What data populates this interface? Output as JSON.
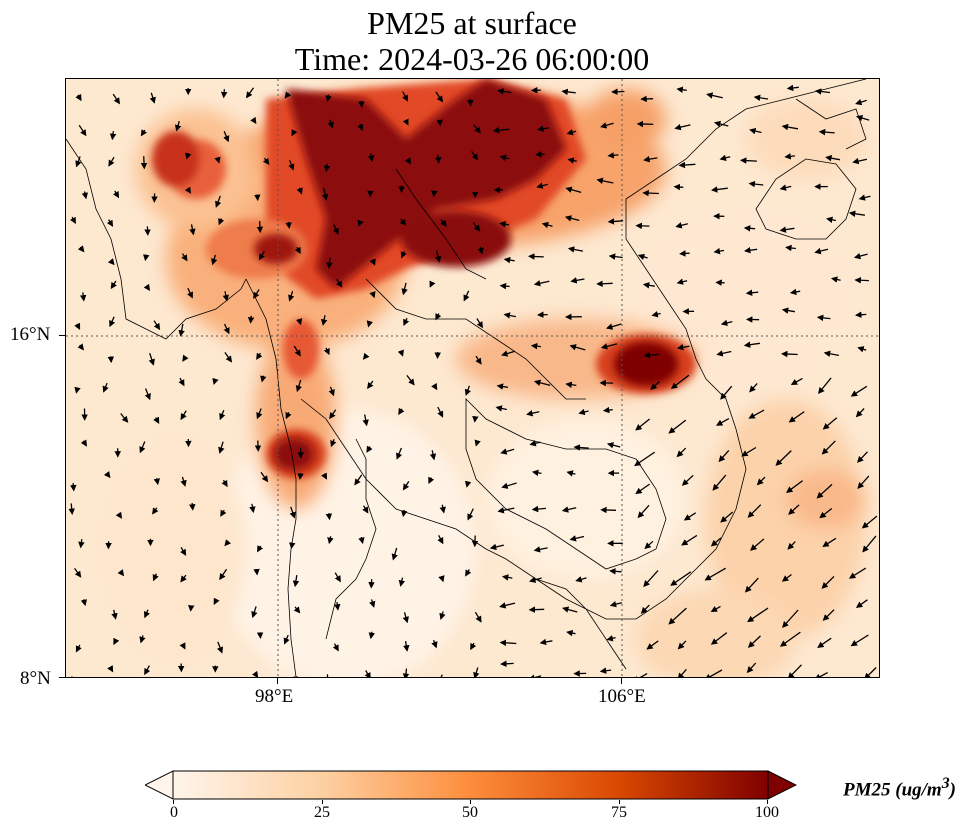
{
  "title": {
    "line1": "PM25 at surface",
    "line2": "Time: 2024-03-26 06:00:00"
  },
  "axes": {
    "lat_ticks": [
      "16°N",
      "8°N"
    ],
    "lon_ticks": [
      "98°E",
      "106°E"
    ]
  },
  "colorbar": {
    "label_main": "PM25 (ug/m",
    "label_exp": "3",
    "label_close": ")",
    "ticks": [
      "0",
      "25",
      "50",
      "75",
      "100"
    ],
    "colors": {
      "low": "#fff5eb",
      "c1": "#fdd0a2",
      "c2": "#fd8d3c",
      "c3": "#d94801",
      "high": "#7f0000"
    }
  },
  "map": {
    "region": "Southeast Asia (Myanmar, Thailand, Laos, Cambodia, Vietnam)",
    "extent": {
      "lon_min": 93,
      "lon_max": 112,
      "lat_min": 8,
      "lat_max": 22
    }
  }
}
